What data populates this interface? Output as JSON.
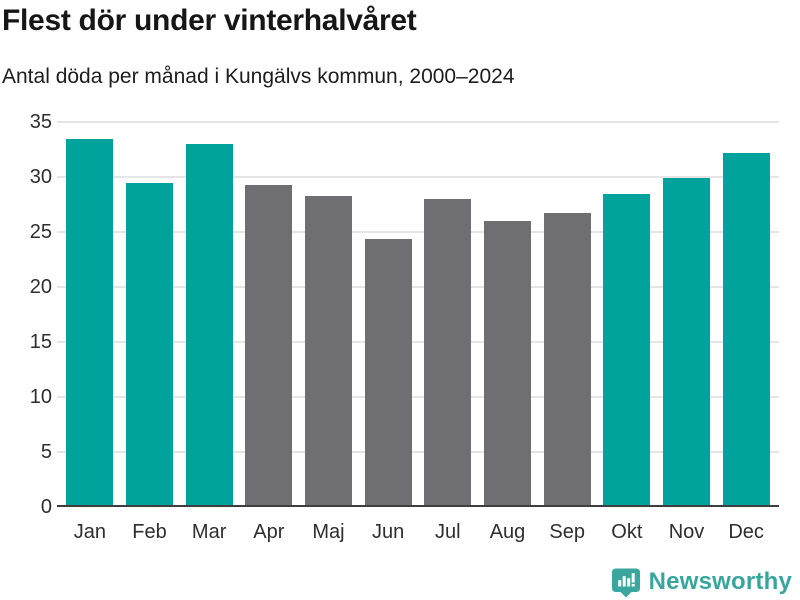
{
  "header": {
    "title": "Flest dör under vinterhalvåret",
    "subtitle": "Antal döda per månad i Kungälvs kommun, 2000–2024"
  },
  "chart_data": {
    "type": "bar",
    "title": "Flest dör under vinterhalvåret",
    "subtitle": "Antal döda per månad i Kungälvs kommun, 2000–2024",
    "categories": [
      "Jan",
      "Feb",
      "Mar",
      "Apr",
      "Maj",
      "Jun",
      "Jul",
      "Aug",
      "Sep",
      "Okt",
      "Nov",
      "Dec"
    ],
    "values": [
      33.5,
      29.5,
      33.0,
      29.3,
      28.3,
      24.4,
      28.0,
      26.0,
      26.7,
      28.5,
      29.9,
      32.2
    ],
    "groups": [
      "winter",
      "winter",
      "winter",
      "summer",
      "summer",
      "summer",
      "summer",
      "summer",
      "summer",
      "winter",
      "winter",
      "winter"
    ],
    "colors": {
      "winter": "#00a39c",
      "summer": "#6e6e73"
    },
    "xlabel": "",
    "ylabel": "",
    "ylim": [
      0,
      35
    ],
    "yticks": [
      0,
      5,
      10,
      15,
      20,
      25,
      30,
      35
    ],
    "grid": true,
    "legend": false,
    "grid_color": "#e5e5e5",
    "axis_line_color": "#3e3e3e",
    "tick_label_color": "#2e2e2e"
  },
  "branding": {
    "name": "Newsworthy",
    "color": "#38a59e",
    "icon": "bar-chart-speech-bubble-icon"
  }
}
